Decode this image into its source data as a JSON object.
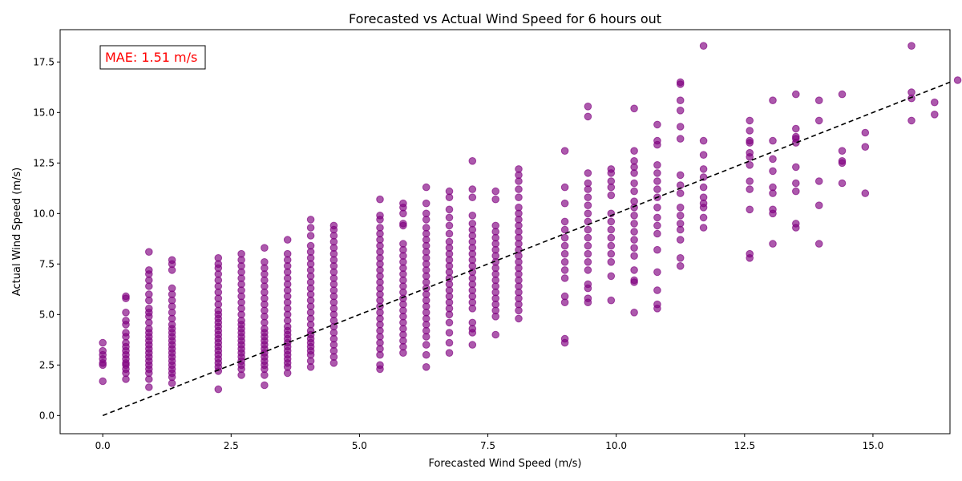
{
  "chart_data": {
    "type": "scatter",
    "title": "Forecasted vs Actual Wind Speed for 6 hours out",
    "xlabel": "Forecasted Wind Speed (m/s)",
    "ylabel": "Actual Wind Speed (m/s)",
    "xlim": [
      -0.83,
      16.5
    ],
    "ylim": [
      -0.9,
      19.1
    ],
    "x_ticks": [
      "0.0",
      "2.5",
      "5.0",
      "7.5",
      "10.0",
      "12.5",
      "15.0"
    ],
    "x_tick_values": [
      0,
      2.5,
      5,
      7.5,
      10,
      12.5,
      15
    ],
    "y_ticks": [
      "0.0",
      "2.5",
      "5.0",
      "7.5",
      "10.0",
      "12.5",
      "15.0",
      "17.5"
    ],
    "y_tick_values": [
      0,
      2.5,
      5,
      7.5,
      10,
      12.5,
      15,
      17.5
    ],
    "grid": false,
    "point_color": "#800080",
    "point_alpha": 0.65,
    "annotation": {
      "text": "MAE: 1.51 m/s",
      "color": "#ff0000",
      "position": "top-left"
    },
    "reference_line": {
      "style": "dashed",
      "color": "#000000",
      "points": [
        [
          0,
          0
        ],
        [
          16.5,
          16.5
        ]
      ]
    },
    "series": [
      {
        "columns": [
          {
            "x": 0.0,
            "y": [
              1.7,
              2.5,
              2.6,
              2.8,
              3.0,
              3.2,
              3.6
            ]
          },
          {
            "x": 0.45,
            "y": [
              1.8,
              2.1,
              2.3,
              2.5,
              2.6,
              2.8,
              3.0,
              3.2,
              3.4,
              3.6,
              3.9,
              4.1,
              4.5,
              4.7,
              5.1,
              5.8,
              5.9
            ]
          },
          {
            "x": 0.9,
            "y": [
              1.4,
              1.8,
              2.1,
              2.3,
              2.5,
              2.7,
              2.9,
              3.1,
              3.3,
              3.5,
              3.7,
              3.9,
              4.1,
              4.3,
              4.6,
              4.9,
              5.1,
              5.3,
              5.7,
              6.0,
              6.4,
              6.7,
              7.0,
              7.2,
              8.1
            ]
          },
          {
            "x": 1.35,
            "y": [
              1.6,
              1.9,
              2.1,
              2.3,
              2.5,
              2.7,
              2.9,
              3.1,
              3.3,
              3.5,
              3.7,
              3.9,
              4.1,
              4.3,
              4.5,
              4.8,
              5.1,
              5.4,
              5.7,
              6.0,
              6.3,
              7.2,
              7.5,
              7.7
            ]
          },
          {
            "x": 2.25,
            "y": [
              1.3,
              2.2,
              2.4,
              2.6,
              2.8,
              3.0,
              3.2,
              3.4,
              3.6,
              3.8,
              4.0,
              4.2,
              4.4,
              4.6,
              4.8,
              5.0,
              5.2,
              5.5,
              5.8,
              6.1,
              6.4,
              6.7,
              7.0,
              7.3,
              7.5,
              7.8
            ]
          },
          {
            "x": 2.7,
            "y": [
              2.0,
              2.3,
              2.5,
              2.7,
              2.9,
              3.1,
              3.3,
              3.5,
              3.7,
              3.9,
              4.1,
              4.3,
              4.5,
              4.7,
              5.0,
              5.3,
              5.6,
              5.9,
              6.2,
              6.5,
              6.8,
              7.1,
              7.4,
              7.7,
              8.0
            ]
          },
          {
            "x": 3.15,
            "y": [
              1.5,
              2.0,
              2.3,
              2.5,
              2.7,
              2.9,
              3.1,
              3.3,
              3.5,
              3.7,
              3.9,
              4.1,
              4.3,
              4.6,
              4.9,
              5.2,
              5.5,
              5.8,
              6.1,
              6.4,
              6.7,
              7.0,
              7.3,
              7.6,
              8.3
            ]
          },
          {
            "x": 3.6,
            "y": [
              2.1,
              2.4,
              2.6,
              2.8,
              3.0,
              3.2,
              3.4,
              3.6,
              3.8,
              4.0,
              4.2,
              4.4,
              4.7,
              5.0,
              5.3,
              5.6,
              5.9,
              6.2,
              6.5,
              6.8,
              7.1,
              7.4,
              7.7,
              8.0,
              8.7
            ]
          },
          {
            "x": 4.05,
            "y": [
              2.4,
              2.7,
              3.0,
              3.2,
              3.4,
              3.6,
              3.8,
              4.0,
              4.2,
              4.5,
              4.8,
              5.1,
              5.4,
              5.7,
              6.0,
              6.3,
              6.6,
              6.9,
              7.2,
              7.5,
              7.8,
              8.1,
              8.4,
              8.9,
              9.3,
              9.7
            ]
          },
          {
            "x": 4.5,
            "y": [
              2.6,
              2.9,
              3.2,
              3.5,
              3.8,
              4.1,
              4.4,
              4.7,
              5.0,
              5.3,
              5.6,
              5.9,
              6.2,
              6.5,
              6.8,
              7.1,
              7.4,
              7.7,
              8.0,
              8.3,
              8.6,
              8.9,
              9.2,
              9.4
            ]
          },
          {
            "x": 5.4,
            "y": [
              2.3,
              2.5,
              3.0,
              3.3,
              3.6,
              3.9,
              4.2,
              4.5,
              4.8,
              5.1,
              5.4,
              5.7,
              6.0,
              6.3,
              6.6,
              6.9,
              7.2,
              7.5,
              7.8,
              8.1,
              8.4,
              8.7,
              9.0,
              9.3,
              9.7,
              9.9,
              10.7
            ]
          },
          {
            "x": 5.85,
            "y": [
              3.1,
              3.4,
              3.7,
              4.0,
              4.3,
              4.6,
              4.9,
              5.2,
              5.5,
              5.8,
              6.1,
              6.4,
              6.7,
              7.0,
              7.3,
              7.6,
              7.9,
              8.2,
              8.5,
              9.4,
              9.5,
              10.0,
              10.3,
              10.5
            ]
          },
          {
            "x": 6.3,
            "y": [
              2.4,
              3.0,
              3.5,
              3.9,
              4.2,
              4.5,
              4.8,
              5.1,
              5.4,
              5.7,
              6.0,
              6.3,
              6.6,
              6.9,
              7.2,
              7.5,
              7.8,
              8.1,
              8.4,
              8.7,
              9.0,
              9.3,
              9.7,
              10.0,
              10.5,
              11.3
            ]
          },
          {
            "x": 6.75,
            "y": [
              3.1,
              3.6,
              4.1,
              4.6,
              5.0,
              5.3,
              5.6,
              5.9,
              6.2,
              6.5,
              6.8,
              7.1,
              7.4,
              7.7,
              8.0,
              8.3,
              8.6,
              9.0,
              9.4,
              9.8,
              10.2,
              10.8,
              11.1
            ]
          },
          {
            "x": 7.2,
            "y": [
              3.5,
              4.1,
              4.3,
              4.6,
              5.3,
              5.6,
              5.9,
              6.2,
              6.5,
              6.8,
              7.1,
              7.4,
              7.7,
              8.0,
              8.3,
              8.6,
              8.9,
              9.2,
              9.5,
              9.9,
              10.8,
              11.2,
              12.6
            ]
          },
          {
            "x": 7.65,
            "y": [
              4.0,
              4.9,
              5.2,
              5.5,
              5.8,
              6.1,
              6.4,
              6.7,
              7.0,
              7.3,
              7.6,
              7.9,
              8.2,
              8.5,
              8.8,
              9.1,
              9.4,
              10.7,
              11.1
            ]
          },
          {
            "x": 8.1,
            "y": [
              4.8,
              5.2,
              5.5,
              5.8,
              6.1,
              6.4,
              6.7,
              7.0,
              7.3,
              7.6,
              7.9,
              8.2,
              8.5,
              8.8,
              9.1,
              9.4,
              9.7,
              10.0,
              10.3,
              10.8,
              11.2,
              11.6,
              11.9,
              12.2
            ]
          },
          {
            "x": 9.0,
            "y": [
              3.6,
              3.8,
              5.6,
              5.9,
              6.8,
              7.2,
              7.6,
              8.0,
              8.4,
              8.8,
              9.2,
              9.6,
              10.5,
              11.3,
              13.1
            ]
          },
          {
            "x": 9.45,
            "y": [
              5.6,
              5.8,
              6.3,
              6.5,
              7.2,
              7.6,
              8.0,
              8.4,
              8.8,
              9.2,
              9.6,
              10.0,
              10.4,
              10.8,
              11.2,
              11.5,
              12.0,
              14.8,
              15.3
            ]
          },
          {
            "x": 9.9,
            "y": [
              5.7,
              6.9,
              7.6,
              8.0,
              8.4,
              8.8,
              9.2,
              9.6,
              10.0,
              10.9,
              11.3,
              11.6,
              12.0,
              12.2
            ]
          },
          {
            "x": 10.35,
            "y": [
              5.1,
              6.6,
              6.7,
              7.2,
              7.9,
              8.3,
              8.7,
              9.1,
              9.5,
              9.9,
              10.3,
              10.6,
              11.1,
              11.5,
              12.0,
              12.3,
              12.6,
              13.1,
              15.2
            ]
          },
          {
            "x": 10.8,
            "y": [
              5.3,
              5.5,
              6.2,
              7.1,
              8.2,
              9.0,
              9.4,
              9.8,
              10.3,
              10.8,
              11.2,
              11.6,
              12.0,
              12.4,
              13.4,
              13.6,
              14.4
            ]
          },
          {
            "x": 11.25,
            "y": [
              7.4,
              7.8,
              8.7,
              9.2,
              9.5,
              9.9,
              10.3,
              11.0,
              11.4,
              11.9,
              13.7,
              14.3,
              15.1,
              15.6,
              16.4,
              16.5
            ]
          },
          {
            "x": 11.7,
            "y": [
              9.3,
              9.8,
              10.3,
              10.5,
              10.8,
              11.3,
              11.8,
              12.2,
              12.9,
              13.6,
              18.3
            ]
          },
          {
            "x": 12.6,
            "y": [
              7.8,
              8.0,
              10.2,
              11.2,
              11.6,
              12.4,
              12.8,
              13.0,
              13.5,
              13.6,
              14.1,
              14.6
            ]
          },
          {
            "x": 13.05,
            "y": [
              8.5,
              10.0,
              10.2,
              11.0,
              11.3,
              12.1,
              12.7,
              13.6,
              15.6
            ]
          },
          {
            "x": 13.5,
            "y": [
              9.3,
              9.5,
              11.1,
              11.5,
              12.3,
              13.5,
              13.7,
              13.8,
              14.2,
              15.9
            ]
          },
          {
            "x": 13.95,
            "y": [
              8.5,
              10.4,
              11.6,
              14.6,
              15.6
            ]
          },
          {
            "x": 14.4,
            "y": [
              11.5,
              12.5,
              12.6,
              13.1,
              15.9
            ]
          },
          {
            "x": 14.85,
            "y": [
              11.0,
              13.3,
              14.0
            ]
          },
          {
            "x": 15.75,
            "y": [
              14.6,
              15.7,
              16.0,
              18.3
            ]
          },
          {
            "x": 16.2,
            "y": [
              14.9,
              15.5
            ]
          },
          {
            "x": 16.65,
            "y": [
              16.6
            ]
          }
        ]
      }
    ]
  }
}
